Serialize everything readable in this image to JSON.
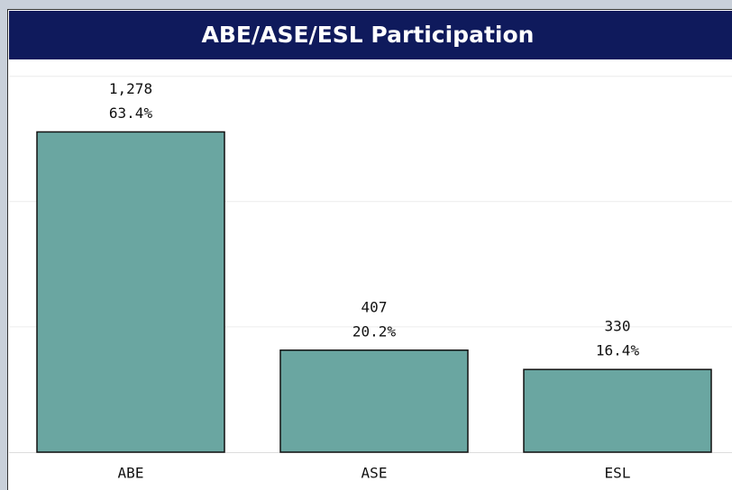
{
  "chart_data": {
    "type": "bar",
    "title": "ABE/ASE/ESL Participation",
    "categories": [
      "ABE",
      "ASE",
      "ESL"
    ],
    "values": [
      1278,
      407,
      330
    ],
    "value_labels": [
      "1,278",
      "407",
      "330"
    ],
    "shares": [
      63.4,
      20.2,
      16.4
    ],
    "share_labels": [
      "63.4%",
      "20.2%",
      "16.4%"
    ],
    "color": "#6aa6a1",
    "ylim": [
      0,
      1560
    ],
    "gridlines": [
      500,
      1000,
      1500
    ],
    "grid": true
  }
}
